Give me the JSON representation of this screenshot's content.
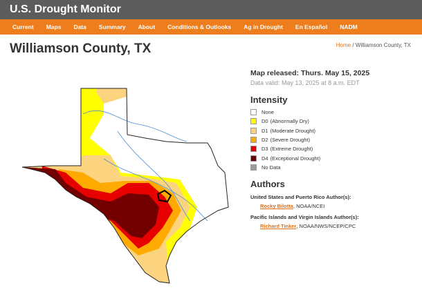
{
  "header": {
    "title": "U.S. Drought Monitor"
  },
  "nav": [
    "Current",
    "Maps",
    "Data",
    "Summary",
    "About",
    "Conditions & Outlooks",
    "Ag in Drought",
    "En Español",
    "NADM"
  ],
  "page": {
    "title": "Williamson County, TX",
    "breadcrumb": {
      "home": "Home",
      "separator": "/",
      "current": "Williamson County, TX"
    }
  },
  "map_info": {
    "released": "Map released: Thurs. May 15, 2025",
    "valid": "Data valid: May 13, 2025 at 8 a.m. EDT"
  },
  "legend": {
    "title": "Intensity",
    "items": [
      {
        "code": "None",
        "color": "#ffffff"
      },
      {
        "code": "D0",
        "label": "(Abnormally Dry)",
        "color": "#ffff00"
      },
      {
        "code": "D1",
        "label": "(Moderate Drought)",
        "color": "#fcd37f"
      },
      {
        "code": "D2",
        "label": "(Severe Drought)",
        "color": "#ffaa00"
      },
      {
        "code": "D3",
        "label": "(Extreme Drought)",
        "color": "#e60000"
      },
      {
        "code": "D4",
        "label": "(Exceptional Drought)",
        "color": "#730000"
      },
      {
        "code": "No Data",
        "color": "#9b9b9b"
      }
    ]
  },
  "authors": {
    "title": "Authors",
    "groups": [
      {
        "heading": "United States and Puerto Rico Author(s):",
        "name": "Rocky Bilotta",
        "affiliation": ", NOAA/NCEI"
      },
      {
        "heading": "Pacific Islands and Virgin Islands Author(s):",
        "name": "Richard Tinker",
        "affiliation": ", NOAA/NWS/NCEP/CPC"
      }
    ]
  }
}
